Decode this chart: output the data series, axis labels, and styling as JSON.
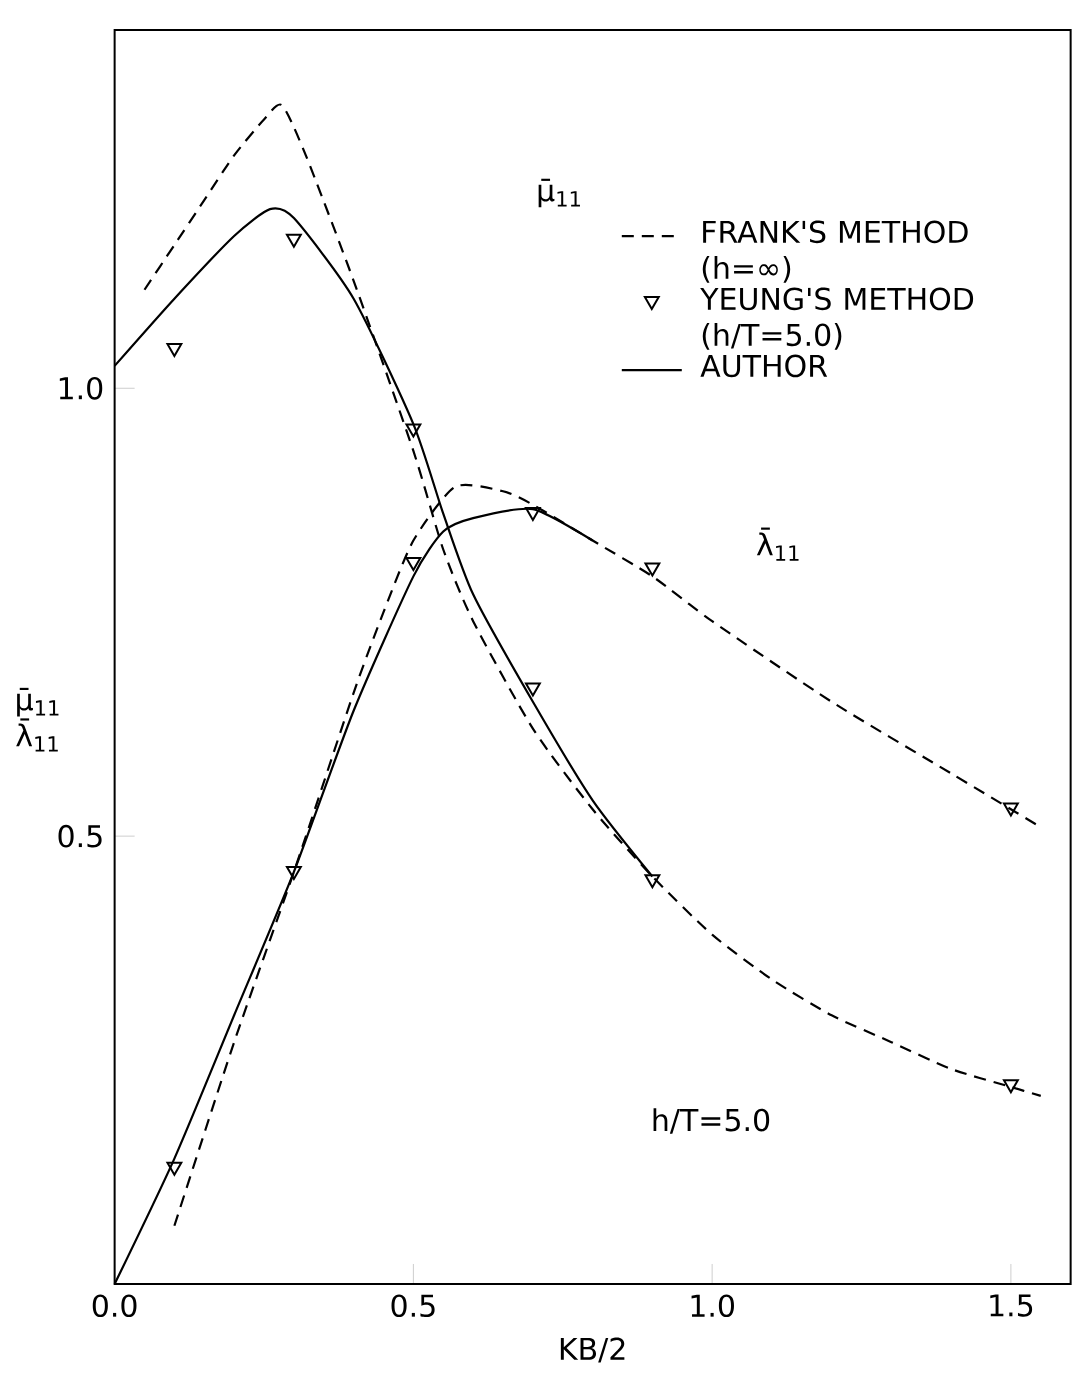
{
  "chart_data": {
    "type": "line",
    "xlabel": "KB/2",
    "ylabel": "μ̄$_{11}$ λ̄$_{11}$",
    "xlim": [
      0,
      1.6
    ],
    "ylim": [
      0,
      1.4
    ],
    "xticks": [
      {
        "value": 0,
        "label": "0.0"
      },
      {
        "value": 0.5,
        "label": "0.5"
      },
      {
        "value": 1,
        "label": "1.0"
      },
      {
        "value": 1.5,
        "label": "1.5"
      }
    ],
    "yticks": [
      0.5,
      {
        "value": 1,
        "label": "1.0"
      }
    ],
    "legend": "top right",
    "grid": false,
    "series": [
      {
        "name": "FRANK'S METHOD (h=∞)",
        "line_style": "dashed",
        "color": "#000000",
        "x": [
          0.05,
          0.1,
          0.15,
          0.2,
          0.25,
          0.28,
          0.32,
          0.4,
          0.5,
          0.55,
          0.6,
          0.7,
          0.8,
          0.9,
          1.0,
          1.1,
          1.2,
          1.3,
          1.4,
          1.5,
          1.55
        ],
        "values": [
          1.11,
          1.16,
          1.21,
          1.26,
          1.3,
          1.316,
          1.26,
          1.12,
          0.93,
          0.82,
          0.74,
          0.62,
          0.53,
          0.455,
          0.39,
          0.34,
          0.3,
          0.27,
          0.24,
          0.22,
          0.21
        ]
      },
      {
        "line_style": "dashed",
        "color": "#000000",
        "x": [
          0.1,
          0.2,
          0.3,
          0.4,
          0.45,
          0.5,
          0.57,
          0.65,
          0.7,
          0.8,
          0.9,
          1.0,
          1.2,
          1.4,
          1.5,
          1.55
        ],
        "values": [
          0.065,
          0.27,
          0.46,
          0.66,
          0.75,
          0.83,
          0.89,
          0.885,
          0.87,
          0.83,
          0.79,
          0.74,
          0.65,
          0.57,
          0.53,
          0.51
        ]
      },
      {
        "name": "YEUNG'S METHOD (h/T=5.0)",
        "type": "scatter",
        "marker": "triangle",
        "color": "#000000",
        "x": [
          0.1,
          0.3,
          0.5,
          0.7,
          0.9,
          1.5
        ],
        "values": [
          1.045,
          1.167,
          0.955,
          0.666,
          0.452,
          0.223
        ]
      },
      {
        "type": "scatter",
        "marker": "triangle",
        "color": "#000000",
        "x": [
          0.1,
          0.3,
          0.5,
          0.7,
          0.9,
          1.5
        ],
        "values": [
          0.131,
          0.461,
          0.806,
          0.862,
          0.8,
          0.532
        ]
      },
      {
        "name": "AUTHOR",
        "line_style": "solid",
        "color": "#000000",
        "x": [
          0,
          0.1,
          0.2,
          0.26,
          0.3,
          0.4,
          0.5,
          0.55,
          0.6,
          0.7,
          0.8,
          0.9
        ],
        "values": [
          1.025,
          1.1,
          1.17,
          1.2,
          1.19,
          1.1,
          0.96,
          0.86,
          0.77,
          0.65,
          0.54,
          0.455
        ]
      },
      {
        "line_style": "solid",
        "color": "#000000",
        "x": [
          0,
          0.1,
          0.2,
          0.3,
          0.4,
          0.5,
          0.55,
          0.6,
          0.7,
          0.8
        ],
        "values": [
          0,
          0.14,
          0.3,
          0.46,
          0.64,
          0.79,
          0.84,
          0.855,
          0.865,
          0.83
        ]
      }
    ],
    "annotations": [
      "μ̄$_{11}$",
      "λ̄$_{11}$",
      "h/T=5.0"
    ]
  }
}
